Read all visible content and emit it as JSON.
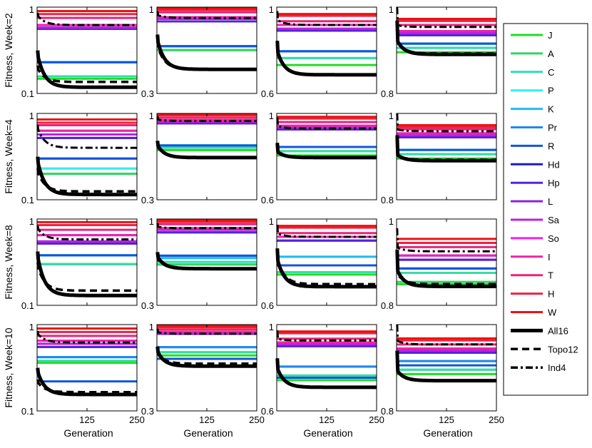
{
  "chart_data": {
    "type": "line",
    "title": "",
    "xlabel": "Generation",
    "x_ticks": [
      "125",
      "250"
    ],
    "xlim": [
      0,
      250
    ],
    "y_scale": "log",
    "row_ylabels": [
      "Fitness, Week=2",
      "Fitness, Week=4",
      "Fitness, Week=8",
      "Fitness, Week=10"
    ],
    "column_ylim": [
      [
        0.1,
        1
      ],
      [
        0.3,
        1
      ],
      [
        0.6,
        1
      ],
      [
        0.8,
        1
      ]
    ],
    "column_ytick_labels": [
      [
        "1",
        "0.1"
      ],
      [
        "0.3"
      ],
      [
        "0.6"
      ],
      [
        "0.8"
      ]
    ],
    "constant_series": [
      {
        "name": "J",
        "color": "#22dd22"
      },
      {
        "name": "A",
        "color": "#33d466"
      },
      {
        "name": "C",
        "color": "#33ddaa"
      },
      {
        "name": "P",
        "color": "#33eeee"
      },
      {
        "name": "K",
        "color": "#22bbee"
      },
      {
        "name": "Pr",
        "color": "#2288ee"
      },
      {
        "name": "R",
        "color": "#1155dd"
      },
      {
        "name": "Hd",
        "color": "#1a1acc"
      },
      {
        "name": "Hp",
        "color": "#5522dd"
      },
      {
        "name": "L",
        "color": "#8822dd"
      },
      {
        "name": "Sa",
        "color": "#bb22dd"
      },
      {
        "name": "So",
        "color": "#ee22ee"
      },
      {
        "name": "I",
        "color": "#ee22aa"
      },
      {
        "name": "T",
        "color": "#ee2277"
      },
      {
        "name": "H",
        "color": "#ee2244"
      },
      {
        "name": "W",
        "color": "#ee1111"
      }
    ],
    "evolved_series": [
      {
        "name": "All16",
        "color": "#000000",
        "style": "solid"
      },
      {
        "name": "Topo12",
        "color": "#000000",
        "style": "dashed"
      },
      {
        "name": "Ind4",
        "color": "#000000",
        "style": "dashdot"
      }
    ],
    "panels": [
      [
        {
          "levels": [
            0.148,
            0.158,
            0.158,
            0.23,
            0.23,
            0.23,
            0.23,
            0.56,
            0.56,
            0.58,
            0.58,
            0.62,
            0.62,
            0.75,
            0.83,
            0.9
          ],
          "all16": {
            "start": 0.3,
            "end": 0.118
          },
          "topo12": {
            "start": 0.2,
            "end": 0.136
          },
          "ind4": {
            "start": 0.82,
            "end": 0.62
          }
        },
        {
          "levels": [
            0.55,
            0.55,
            0.58,
            0.58,
            0.58,
            0.58,
            0.58,
            0.82,
            0.82,
            0.85,
            0.85,
            0.87,
            0.87,
            0.93,
            0.96,
            0.98
          ],
          "all16": {
            "start": 0.65,
            "end": 0.42
          },
          "topo12": {
            "start": 0.6,
            "end": 0.42
          },
          "ind4": {
            "start": 0.9,
            "end": 0.86
          }
        },
        {
          "levels": [
            0.71,
            0.74,
            0.74,
            0.77,
            0.77,
            0.77,
            0.77,
            0.87,
            0.87,
            0.88,
            0.88,
            0.9,
            0.9,
            0.92,
            0.95,
            0.96
          ],
          "all16": {
            "start": 0.78,
            "end": 0.67
          },
          "topo12": {
            "start": 0.78,
            "end": 0.67
          },
          "ind4": {
            "start": 0.93,
            "end": 0.9
          }
        },
        {
          "levels": [
            0.89,
            0.9,
            0.9,
            0.91,
            0.91,
            0.91,
            0.91,
            0.93,
            0.93,
            0.935,
            0.935,
            0.94,
            0.94,
            0.955,
            0.965,
            0.97
          ],
          "all16": {
            "start": 0.92,
            "end": 0.885
          },
          "topo12": {
            "start": 0.92,
            "end": 0.887
          },
          "ind4": {
            "start": 0.955,
            "end": 0.95
          }
        }
      ],
      [
        {
          "levels": [
            0.2,
            0.2,
            0.23,
            0.23,
            0.3,
            0.3,
            0.3,
            0.52,
            0.52,
            0.57,
            0.57,
            0.63,
            0.63,
            0.73,
            0.78,
            0.85
          ],
          "all16": {
            "start": 0.3,
            "end": 0.115
          },
          "topo12": {
            "start": 0.22,
            "end": 0.125
          },
          "ind4": {
            "start": 0.7,
            "end": 0.4
          }
        },
        {
          "levels": [
            0.6,
            0.62,
            0.62,
            0.64,
            0.64,
            0.64,
            0.64,
            0.87,
            0.87,
            0.89,
            0.89,
            0.91,
            0.91,
            0.94,
            0.97,
            0.99
          ],
          "all16": {
            "start": 0.65,
            "end": 0.54
          },
          "topo12": {
            "start": 0.64,
            "end": 0.54
          },
          "ind4": {
            "start": 0.92,
            "end": 0.9
          }
        },
        {
          "levels": [
            0.78,
            0.8,
            0.8,
            0.82,
            0.82,
            0.82,
            0.82,
            0.91,
            0.91,
            0.92,
            0.92,
            0.93,
            0.93,
            0.95,
            0.97,
            0.98
          ],
          "all16": {
            "start": 0.8,
            "end": 0.77
          },
          "topo12": {
            "start": 0.8,
            "end": 0.77
          },
          "ind4": {
            "start": 0.93,
            "end": 0.915
          }
        },
        {
          "levels": [
            0.89,
            0.9,
            0.9,
            0.91,
            0.91,
            0.91,
            0.91,
            0.94,
            0.94,
            0.945,
            0.945,
            0.95,
            0.95,
            0.96,
            0.965,
            0.97
          ],
          "all16": {
            "start": 0.9,
            "end": 0.885
          },
          "topo12": {
            "start": 0.9,
            "end": 0.887
          },
          "ind4": {
            "start": 0.96,
            "end": 0.955
          }
        }
      ],
      [
        {
          "levels": [
            0.3,
            0.3,
            0.3,
            0.38,
            0.38,
            0.38,
            0.38,
            0.52,
            0.52,
            0.55,
            0.55,
            0.65,
            0.65,
            0.75,
            0.85,
            0.92
          ],
          "all16": {
            "start": 0.4,
            "end": 0.13
          },
          "topo12": {
            "start": 0.3,
            "end": 0.148
          },
          "ind4": {
            "start": 0.8,
            "end": 0.58
          }
        },
        {
          "levels": [
            0.53,
            0.53,
            0.55,
            0.58,
            0.58,
            0.6,
            0.6,
            0.83,
            0.83,
            0.86,
            0.86,
            0.88,
            0.88,
            0.93,
            0.96,
            0.98
          ],
          "all16": {
            "start": 0.6,
            "end": 0.5
          },
          "topo12": {
            "start": 0.58,
            "end": 0.5
          },
          "ind4": {
            "start": 0.9,
            "end": 0.88
          }
        },
        {
          "levels": [
            0.72,
            0.73,
            0.73,
            0.8,
            0.8,
            0.76,
            0.76,
            0.88,
            0.88,
            0.9,
            0.9,
            0.9,
            0.9,
            0.92,
            0.95,
            0.96
          ],
          "all16": {
            "start": 0.8,
            "end": 0.67
          },
          "topo12": {
            "start": 0.8,
            "end": 0.68
          },
          "ind4": {
            "start": 0.92,
            "end": 0.9
          }
        },
        {
          "levels": [
            0.845,
            0.85,
            0.87,
            0.88,
            0.88,
            0.88,
            0.88,
            0.9,
            0.9,
            0.91,
            0.91,
            0.91,
            0.91,
            0.93,
            0.94,
            0.95
          ],
          "all16": {
            "start": 0.88,
            "end": 0.84
          },
          "topo12": {
            "start": 0.87,
            "end": 0.845
          },
          "ind4": {
            "start": 0.93,
            "end": 0.92
          }
        }
      ],
      [
        {
          "levels": [
            0.36,
            0.38,
            0.38,
            0.42,
            0.42,
            0.42,
            0.22,
            0.55,
            0.55,
            0.6,
            0.6,
            0.65,
            0.65,
            0.74,
            0.82,
            0.9
          ],
          "all16": {
            "start": 0.3,
            "end": 0.155
          },
          "topo12": {
            "start": 0.22,
            "end": 0.165
          },
          "ind4": {
            "start": 0.8,
            "end": 0.62
          }
        },
        {
          "levels": [
            0.65,
            0.68,
            0.68,
            0.73,
            0.73,
            0.73,
            0.62,
            0.88,
            0.88,
            0.89,
            0.89,
            0.9,
            0.9,
            0.93,
            0.96,
            0.98
          ],
          "all16": {
            "start": 0.7,
            "end": 0.56
          },
          "topo12": {
            "start": 0.68,
            "end": 0.58
          },
          "ind4": {
            "start": 0.9,
            "end": 0.88
          }
        },
        {
          "levels": [
            0.72,
            0.74,
            0.74,
            0.78,
            0.78,
            0.78,
            0.73,
            0.88,
            0.88,
            0.89,
            0.89,
            0.9,
            0.9,
            0.92,
            0.95,
            0.96
          ],
          "all16": {
            "start": 0.78,
            "end": 0.69
          },
          "topo12": {
            "start": 0.78,
            "end": 0.69
          },
          "ind4": {
            "start": 0.92,
            "end": 0.91
          }
        },
        {
          "levels": [
            0.88,
            0.89,
            0.89,
            0.91,
            0.91,
            0.91,
            0.9,
            0.93,
            0.93,
            0.935,
            0.935,
            0.94,
            0.94,
            0.95,
            0.96,
            0.965
          ],
          "all16": {
            "start": 0.89,
            "end": 0.865
          },
          "topo12": {
            "start": 0.89,
            "end": 0.865
          },
          "ind4": {
            "start": 0.96,
            "end": 0.95
          }
        }
      ]
    ]
  }
}
